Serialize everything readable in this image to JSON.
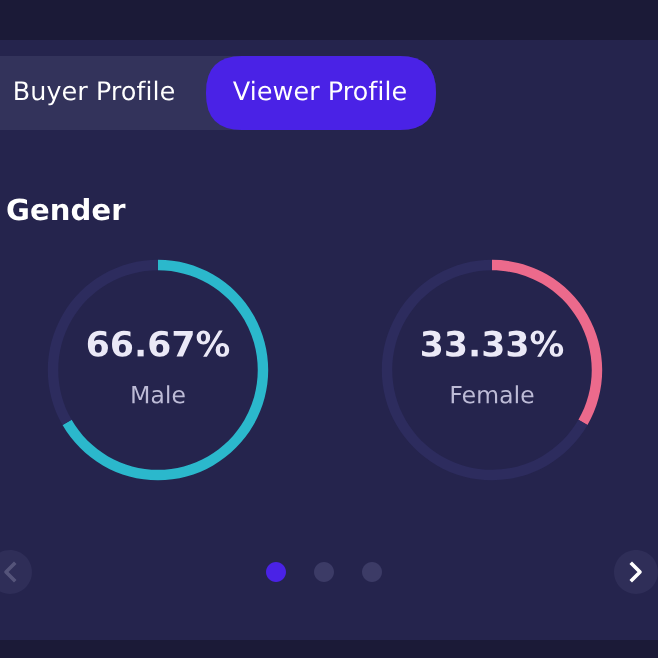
{
  "chart_data": [
    {
      "type": "other",
      "title": "Gender",
      "annotations": [
        "Buyer Profile",
        "Viewer Profile"
      ]
    },
    {
      "type": "donut",
      "categories": [
        null,
        null
      ],
      "annotations": [
        "Male"
      ],
      "values": [
        66.67,
        33.33
      ],
      "colors": [
        "#2bb8cc",
        "#2d2c5e"
      ],
      "value_labels": [
        "66.67%",
        null
      ]
    },
    {
      "type": "donut",
      "categories": [
        null,
        null
      ],
      "annotations": [
        "Female"
      ],
      "values": [
        33.33,
        66.67
      ],
      "colors": [
        "#ec6a8c",
        "#2d2c5e"
      ],
      "value_labels": [
        "33.33%",
        null
      ]
    }
  ]
}
